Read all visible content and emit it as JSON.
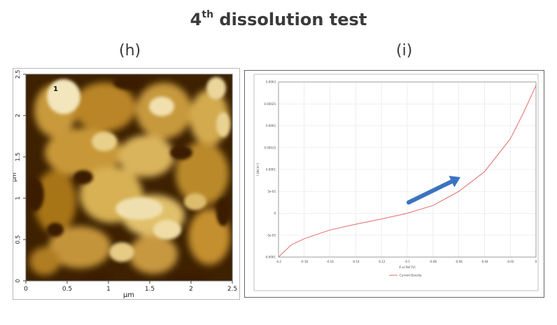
{
  "title": {
    "prefix": "4",
    "superscript": "th",
    "rest": " dissolution test"
  },
  "panels": {
    "h": {
      "label": "(h)"
    },
    "i": {
      "label": "(i)"
    }
  },
  "afm": {
    "x_ticks": [
      "0",
      "0.5",
      "1",
      "1.5",
      "2",
      "2.5"
    ],
    "y_ticks": [
      "0",
      "0.5",
      "1",
      "1.5",
      "2",
      "2.5"
    ],
    "x_label": "µm",
    "y_label": "µm",
    "marker": "1",
    "colors": {
      "dark": "#3d2100",
      "mid": "#a8700e",
      "light": "#f6eecb"
    }
  },
  "chart_data": {
    "type": "line",
    "x_ticks": [
      "-0.2",
      "-0.18",
      "-0.16",
      "-0.14",
      "-0.12",
      "-0.1",
      "-0.08",
      "-0.06",
      "-0.04",
      "-0.02",
      "0"
    ],
    "y_ticks": [
      "0.0003",
      "0.00025",
      "0.0002",
      "0.00015",
      "0.0001",
      "5e-05",
      "0",
      "-5e-05",
      "-0.0001"
    ],
    "xlim": [
      -0.2,
      0
    ],
    "ylim": [
      -0.0001,
      0.0003
    ],
    "xlabel": "E vs Ref [V]",
    "ylabel": "I [A/cm²]",
    "grid": true,
    "legend": {
      "entries": [
        "Current Density"
      ],
      "placement": "bottom"
    },
    "series": [
      {
        "name": "Current Density",
        "color": "#e46b6b",
        "x": [
          -0.2,
          -0.19,
          -0.18,
          -0.16,
          -0.14,
          -0.12,
          -0.1,
          -0.08,
          -0.06,
          -0.04,
          -0.02,
          -0.01,
          0
        ],
        "y": [
          -0.0001,
          -7.2e-05,
          -5.8e-05,
          -3.8e-05,
          -2.5e-05,
          -1.3e-05,
          0.0,
          1.8e-05,
          5e-05,
          9.5e-05,
          0.00017,
          0.000228,
          0.000292
        ]
      }
    ],
    "annotation": {
      "type": "arrow",
      "color": "#3b73c0"
    }
  }
}
